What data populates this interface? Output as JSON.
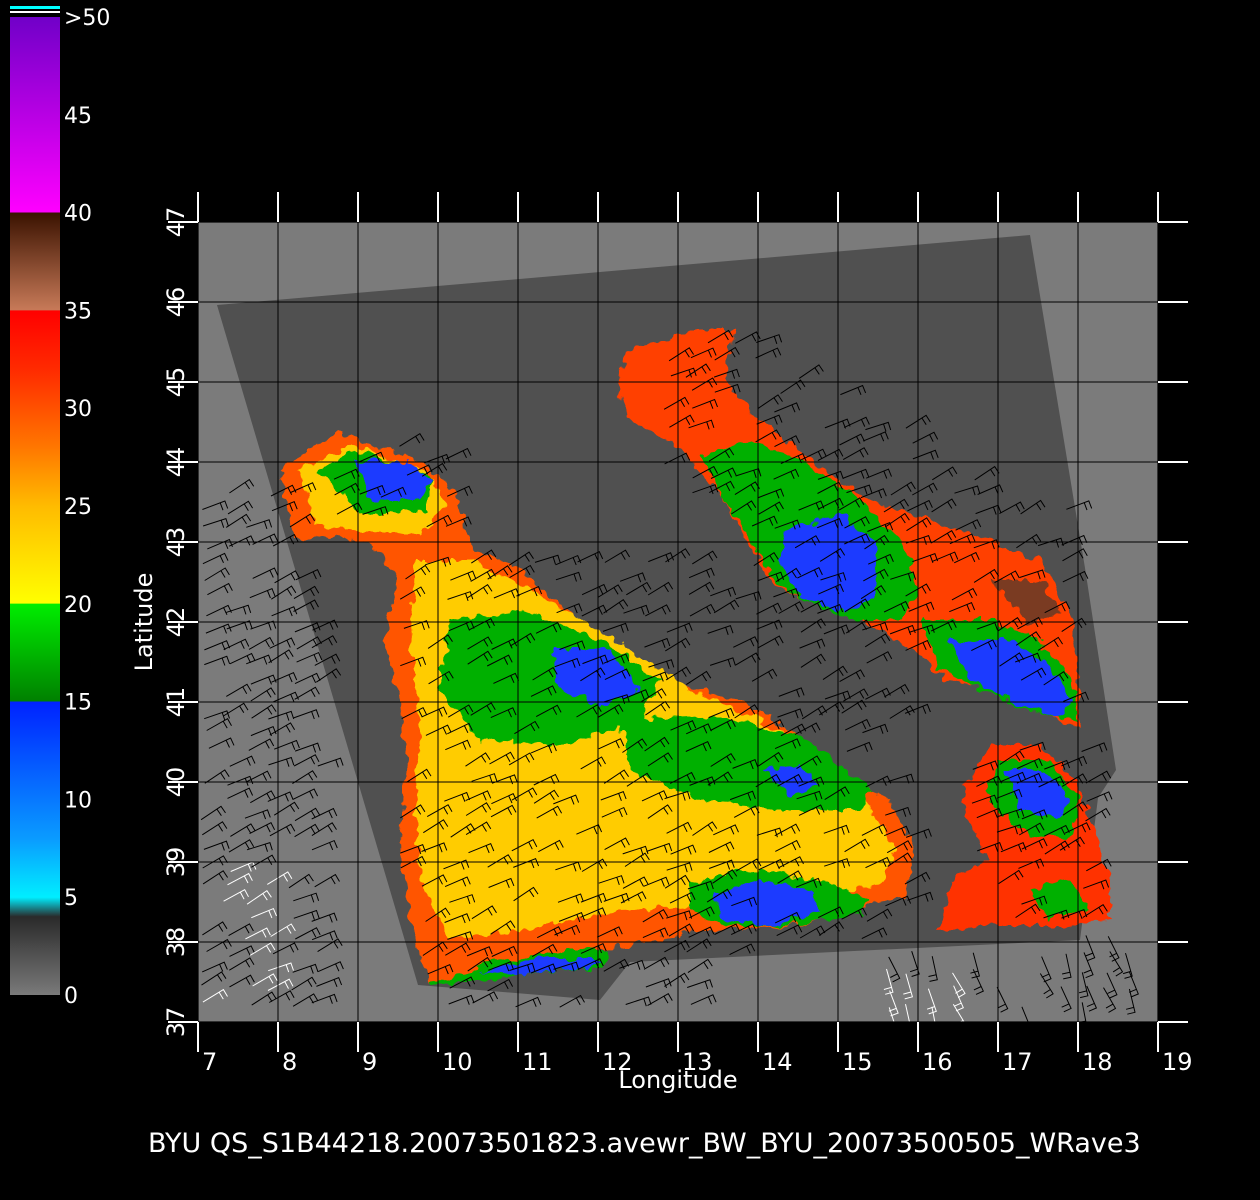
{
  "chart_data": {
    "type": "heatmap",
    "xlabel": "Longitude",
    "ylabel": "Latitude",
    "xlim": [
      7,
      19
    ],
    "ylim": [
      37,
      47
    ],
    "x_ticks": [
      "7",
      "8",
      "9",
      "10",
      "11",
      "12",
      "13",
      "14",
      "15",
      "16",
      "17",
      "18",
      "19"
    ],
    "y_ticks": [
      "37",
      "38",
      "39",
      "40",
      "41",
      "42",
      "43",
      "44",
      "45",
      "46",
      "47"
    ],
    "grid": true,
    "colorbar": {
      "labels": [
        "0",
        "5",
        "10",
        "15",
        "20",
        "25",
        "30",
        "35",
        "40",
        "45",
        ">50"
      ],
      "min": 0,
      "max": 50,
      "stops": [
        {
          "value": 0,
          "color": "#7a7a7a"
        },
        {
          "value": 4,
          "color": "#2a2a2a"
        },
        {
          "value": 5,
          "color": "#00eeff"
        },
        {
          "value": 8,
          "color": "#0a9bff"
        },
        {
          "value": 15,
          "color": "#0022ff"
        },
        {
          "value": 15.01,
          "color": "#008000"
        },
        {
          "value": 20,
          "color": "#00ee00"
        },
        {
          "value": 20.01,
          "color": "#ffff00"
        },
        {
          "value": 25,
          "color": "#ffbb00"
        },
        {
          "value": 28,
          "color": "#ff7700"
        },
        {
          "value": 32,
          "color": "#ff2a00"
        },
        {
          "value": 35,
          "color": "#ff0000"
        },
        {
          "value": 35.01,
          "color": "#c87a58"
        },
        {
          "value": 40,
          "color": "#3a1200"
        },
        {
          "value": 40.01,
          "color": "#ff00ff"
        },
        {
          "value": 50,
          "color": "#7000c8"
        }
      ]
    },
    "land_color": "#7b7b7b",
    "no_data_color": "#505050"
  },
  "footer": "BYU  QS_S1B44218.20073501823.avewr_BW_BYU_20073500505_WRave3"
}
